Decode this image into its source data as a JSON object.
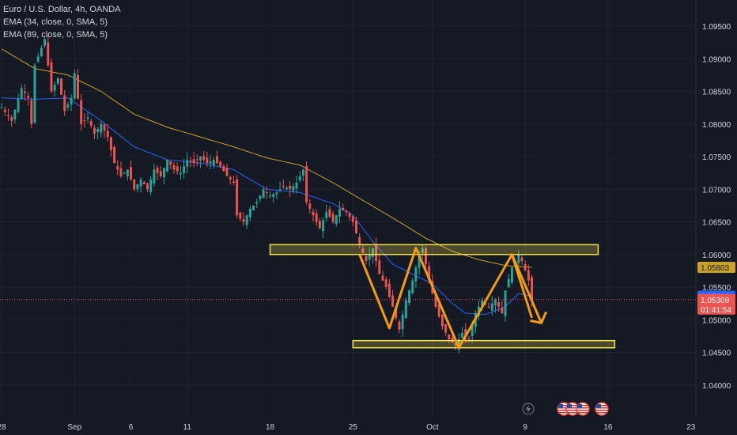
{
  "legend": {
    "symbol": "Euro / U.S. Dollar, 4h, OANDA",
    "ema1": "EMA (34, close, 0, SMA, 5)",
    "ema2": "EMA (89, close, 0, SMA, 5)"
  },
  "colors": {
    "background": "#151924",
    "up": "#26a69a",
    "down": "#ef5350",
    "ema34": "#2962ff",
    "ema89": "#c9a227",
    "zone": "#f5e14a",
    "pattern": "#f39c12"
  },
  "chart_data": {
    "type": "candlestick",
    "symbol": "Euro / U.S. Dollar",
    "timeframe": "4h",
    "ylim": [
      1.035,
      1.099
    ],
    "y_ticks": [
      "1.09500",
      "1.09000",
      "1.08500",
      "1.08000",
      "1.07500",
      "1.07000",
      "1.06500",
      "1.06000",
      "1.05500",
      "1.05000",
      "1.04500",
      "1.04000"
    ],
    "y_tick_values": [
      1.095,
      1.09,
      1.085,
      1.08,
      1.075,
      1.07,
      1.065,
      1.06,
      1.055,
      1.05,
      1.045,
      1.04
    ],
    "x_labels": [
      "28",
      "Sep",
      "6",
      "11",
      "18",
      "25",
      "Oct",
      "9",
      "16",
      "23"
    ],
    "x_label_indices": [
      0,
      22,
      39,
      56,
      81,
      106,
      130,
      158,
      183,
      208
    ],
    "price_path": [
      [
        0,
        1.0825
      ],
      [
        3,
        1.0805
      ],
      [
        6,
        1.0855
      ],
      [
        8,
        1.084
      ],
      [
        9,
        1.08
      ],
      [
        10,
        1.089
      ],
      [
        13,
        1.093
      ],
      [
        15,
        1.085
      ],
      [
        17,
        1.087
      ],
      [
        19,
        1.082
      ],
      [
        21,
        1.084
      ],
      [
        22,
        1.0878
      ],
      [
        24,
        1.08
      ],
      [
        26,
        1.081
      ],
      [
        28,
        1.0785
      ],
      [
        30,
        1.08
      ],
      [
        32,
        1.078
      ],
      [
        34,
        1.074
      ],
      [
        36,
        1.072
      ],
      [
        38,
        1.073
      ],
      [
        40,
        1.07
      ],
      [
        42,
        1.0715
      ],
      [
        44,
        1.07
      ],
      [
        46,
        1.073
      ],
      [
        48,
        1.072
      ],
      [
        50,
        1.0745
      ],
      [
        52,
        1.073
      ],
      [
        54,
        1.0725
      ],
      [
        56,
        1.0745
      ],
      [
        58,
        1.074
      ],
      [
        60,
        1.075
      ],
      [
        62,
        1.074
      ],
      [
        64,
        1.0745
      ],
      [
        66,
        1.0735
      ],
      [
        68,
        1.072
      ],
      [
        70,
        1.071
      ],
      [
        71,
        1.066
      ],
      [
        73,
        1.065
      ],
      [
        75,
        1.067
      ],
      [
        77,
        1.068
      ],
      [
        79,
        1.07
      ],
      [
        81,
        1.069
      ],
      [
        83,
        1.0695
      ],
      [
        85,
        1.0705
      ],
      [
        87,
        1.07
      ],
      [
        89,
        1.071
      ],
      [
        91,
        1.073
      ],
      [
        92,
        1.068
      ],
      [
        94,
        1.066
      ],
      [
        96,
        1.064
      ],
      [
        98,
        1.0665
      ],
      [
        100,
        1.065
      ],
      [
        102,
        1.067
      ],
      [
        104,
        1.0665
      ],
      [
        106,
        1.065
      ],
      [
        108,
        1.0615
      ],
      [
        110,
        1.059
      ],
      [
        112,
        1.061
      ],
      [
        114,
        1.057
      ],
      [
        116,
        1.055
      ],
      [
        118,
        1.052
      ],
      [
        120,
        1.0485
      ],
      [
        122,
        1.053
      ],
      [
        124,
        1.056
      ],
      [
        126,
        1.06
      ],
      [
        127,
        1.061
      ],
      [
        129,
        1.056
      ],
      [
        131,
        1.052
      ],
      [
        133,
        1.049
      ],
      [
        135,
        1.047
      ],
      [
        137,
        1.046
      ],
      [
        139,
        1.048
      ],
      [
        141,
        1.047
      ],
      [
        143,
        1.051
      ],
      [
        145,
        1.053
      ],
      [
        147,
        1.052
      ],
      [
        149,
        1.053
      ],
      [
        151,
        1.051
      ],
      [
        152,
        1.0545
      ],
      [
        154,
        1.058
      ],
      [
        156,
        1.06
      ],
      [
        157,
        1.059
      ],
      [
        159,
        1.056
      ],
      [
        160,
        1.053
      ]
    ],
    "ema34_path": [
      [
        0,
        1.084
      ],
      [
        10,
        1.0838
      ],
      [
        20,
        1.084
      ],
      [
        30,
        1.0805
      ],
      [
        40,
        1.0765
      ],
      [
        50,
        1.0745
      ],
      [
        60,
        1.074
      ],
      [
        70,
        1.073
      ],
      [
        80,
        1.07
      ],
      [
        90,
        1.0695
      ],
      [
        100,
        1.0678
      ],
      [
        106,
        1.066
      ],
      [
        112,
        1.062
      ],
      [
        118,
        1.0585
      ],
      [
        124,
        1.057
      ],
      [
        130,
        1.0555
      ],
      [
        136,
        1.0525
      ],
      [
        140,
        1.051
      ],
      [
        146,
        1.0508
      ],
      [
        152,
        1.052
      ],
      [
        156,
        1.054
      ],
      [
        160,
        1.0536
      ]
    ],
    "ema89_path": [
      [
        0,
        1.0915
      ],
      [
        10,
        1.0885
      ],
      [
        20,
        1.0875
      ],
      [
        30,
        1.085
      ],
      [
        40,
        1.0815
      ],
      [
        50,
        1.0795
      ],
      [
        60,
        1.078
      ],
      [
        70,
        1.0765
      ],
      [
        80,
        1.0748
      ],
      [
        90,
        1.0737
      ],
      [
        100,
        1.071
      ],
      [
        110,
        1.068
      ],
      [
        120,
        1.065
      ],
      [
        128,
        1.0625
      ],
      [
        136,
        1.0605
      ],
      [
        144,
        1.0592
      ],
      [
        152,
        1.0583
      ],
      [
        160,
        1.058
      ]
    ],
    "resistance_zone": [
      1.06,
      1.0615
    ],
    "support_zone": [
      1.0457,
      1.0468
    ],
    "zone_x_range": [
      [
        81,
        180
      ],
      [
        106,
        185
      ]
    ],
    "pattern_path": [
      [
        108,
        1.06
      ],
      [
        117,
        1.0487
      ],
      [
        125,
        1.061
      ],
      [
        138,
        1.0457
      ],
      [
        154,
        1.06
      ],
      [
        160,
        1.0503
      ]
    ],
    "last_price": "1.05309",
    "countdown": "01:41:54",
    "ema34_value": "1.05360",
    "ema89_value": "1.05803",
    "events_icons": [
      "flash-icon",
      "us-flag-icon",
      "us-flag-icon",
      "us-flag-icon",
      "us-flag-icon"
    ]
  }
}
